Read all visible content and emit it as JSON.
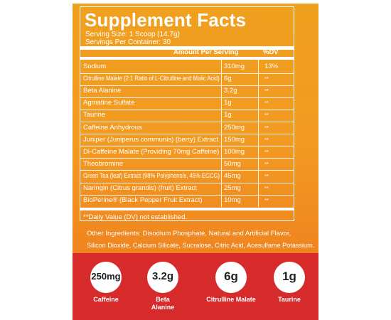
{
  "title": "Supplement Facts",
  "serving_size": "Serving Size: 1 Scoop (14.7g)",
  "servings_per_container": "Servings Per Container: 30",
  "header": {
    "amount": "Amount Per Serving",
    "dv": "%DV"
  },
  "rows": [
    {
      "name": "Sodium",
      "amount": "310mg",
      "dv": "13%"
    },
    {
      "name": "Citrulline Malate (2:1 Ratio of L-Citrulline and Malic Acid)",
      "amount": "6g",
      "dv": "**"
    },
    {
      "name": "Beta Alanine",
      "amount": "3.2g",
      "dv": "**"
    },
    {
      "name": "Agmatine Sulfate",
      "amount": "1g",
      "dv": "**"
    },
    {
      "name": "Taurine",
      "amount": "1g",
      "dv": "**"
    },
    {
      "name": "Caffeine Anhydrous",
      "amount": "250mg",
      "dv": "**"
    },
    {
      "name": "Juniper (Juniperus communis) (berry) Extract",
      "amount": "150mg",
      "dv": "**"
    },
    {
      "name": "Di-Caffeine Malate (Providing 70mg Caffeine)",
      "amount": "100mg",
      "dv": "**"
    },
    {
      "name": "Theobromine",
      "amount": "50mg",
      "dv": "**"
    },
    {
      "name": "Green Tea (leaf) Extract (98% Polyphenols, 45% EGCG)",
      "amount": "45mg",
      "dv": "**"
    },
    {
      "name": "Naringin (Citrus grandis) (fruit) Extract",
      "amount": "25mg",
      "dv": "**"
    },
    {
      "name": "BioPerine® (Black Pepper Fruit Extract)",
      "amount": "10mg",
      "dv": "**"
    }
  ],
  "footnote": "**Daily Value (DV) not established.",
  "other_ingredients_line1": "Other Ingredients: Disodium Phosphate, Natural and Artificial Flavor,",
  "other_ingredients_line2": "Silicon Dioxide, Calcium Silicate, Sucralose, Citric Acid, Acesulfame Potassium.",
  "badges": [
    {
      "value": "250mg",
      "label": "Caffeine"
    },
    {
      "value": "3.2g",
      "label": "Beta Alanine"
    },
    {
      "value": "6g",
      "label": "Citrulline Malate"
    },
    {
      "value": "1g",
      "label": "Taurine"
    }
  ],
  "colors": {
    "orange": "#f0941f",
    "red": "#d72b2b",
    "white": "#ffffff"
  }
}
